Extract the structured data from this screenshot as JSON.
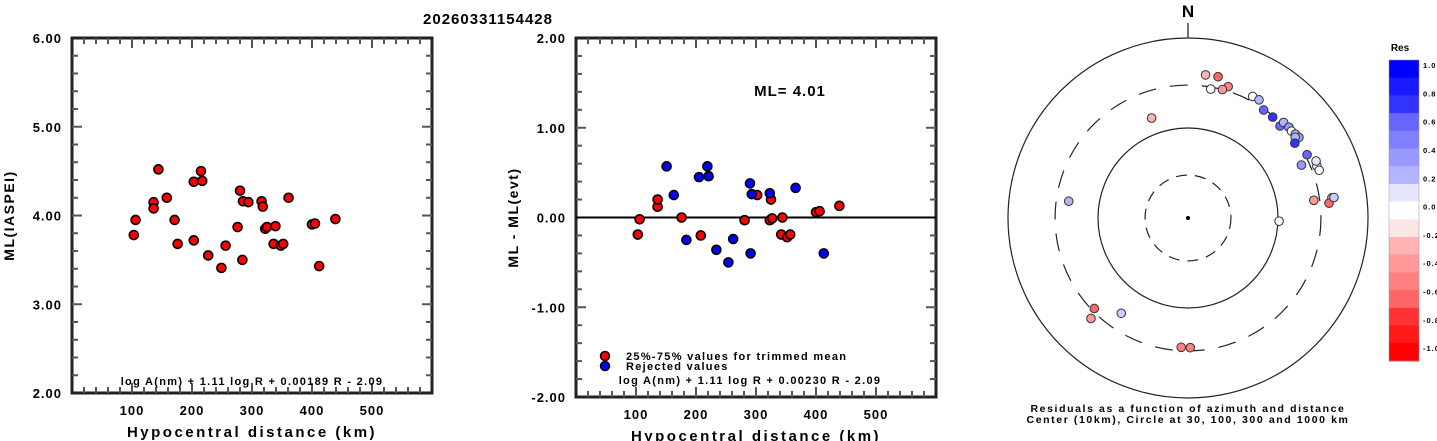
{
  "title": "20260331154428",
  "chart_data": [
    {
      "type": "scatter",
      "id": "ml-vs-distance",
      "xlabel": "Hypocentral distance (km)",
      "ylabel": "ML(IASPEI)",
      "xlim": [
        0,
        600
      ],
      "ylim": [
        2.0,
        6.0
      ],
      "xticks": [
        100,
        200,
        300,
        400,
        500
      ],
      "xtick_labels": [
        "100",
        "200",
        "300",
        "400",
        "500"
      ],
      "yticks": [
        2.0,
        3.0,
        4.0,
        5.0,
        6.0
      ],
      "ytick_labels": [
        "2.00",
        "3.00",
        "4.00",
        "5.00",
        "6.00"
      ],
      "annotation": "log A(nm) + 1.11 log R + 0.00189 R - 2.09",
      "marker_color": "#ff0000",
      "points": [
        [
          103,
          3.78
        ],
        [
          106,
          3.95
        ],
        [
          136,
          4.15
        ],
        [
          136,
          4.08
        ],
        [
          144,
          4.52
        ],
        [
          158,
          4.2
        ],
        [
          171,
          3.95
        ],
        [
          176,
          3.68
        ],
        [
          203,
          3.72
        ],
        [
          203,
          4.38
        ],
        [
          215,
          4.5
        ],
        [
          217,
          4.39
        ],
        [
          227,
          3.55
        ],
        [
          249,
          3.41
        ],
        [
          256,
          3.66
        ],
        [
          276,
          3.87
        ],
        [
          280,
          4.28
        ],
        [
          284,
          3.5
        ],
        [
          285,
          4.16
        ],
        [
          294,
          4.15
        ],
        [
          316,
          4.16
        ],
        [
          318,
          4.1
        ],
        [
          322,
          3.85
        ],
        [
          325,
          3.87
        ],
        [
          336,
          3.68
        ],
        [
          339,
          3.88
        ],
        [
          348,
          3.66
        ],
        [
          352,
          3.68
        ],
        [
          361,
          4.2
        ],
        [
          400,
          3.9
        ],
        [
          405,
          3.91
        ],
        [
          412,
          3.43
        ],
        [
          439,
          3.96
        ]
      ]
    },
    {
      "type": "scatter",
      "id": "residual-vs-distance",
      "xlabel": "Hypocentral distance (km)",
      "ylabel": "ML - ML(evt)",
      "xlim": [
        0,
        600
      ],
      "ylim": [
        -2.0,
        2.0
      ],
      "xticks": [
        100,
        200,
        300,
        400,
        500
      ],
      "xtick_labels": [
        "100",
        "200",
        "300",
        "400",
        "500"
      ],
      "yticks": [
        -2.0,
        -1.0,
        0.0,
        1.0,
        2.0
      ],
      "ytick_labels": [
        "-2.00",
        "-1.00",
        "0.00",
        "1.00",
        "2.00"
      ],
      "reference_line": 0.0,
      "ml_label": "ML= 4.01",
      "annotation": "log A(nm) + 1.11 log R + 0.00230 R - 2.09",
      "legend": [
        {
          "label": "25%-75% values for trimmed mean",
          "color": "#ff0000"
        },
        {
          "label": "Rejected values",
          "color": "#0000ff"
        }
      ],
      "legend_position": "bottom-left",
      "series": [
        {
          "name": "25%-75% values for trimmed mean",
          "color": "#ff0000",
          "points": [
            [
              103,
              -0.19
            ],
            [
              106,
              -0.02
            ],
            [
              136,
              0.12
            ],
            [
              136,
              0.2
            ],
            [
              176,
              0.0
            ],
            [
              208,
              -0.2
            ],
            [
              281,
              -0.03
            ],
            [
              302,
              0.25
            ],
            [
              323,
              -0.03
            ],
            [
              325,
              0.2
            ],
            [
              327,
              -0.01
            ],
            [
              342,
              -0.19
            ],
            [
              344,
              0.0
            ],
            [
              352,
              -0.22
            ],
            [
              357,
              -0.19
            ],
            [
              400,
              0.06
            ],
            [
              406,
              0.07
            ],
            [
              439,
              0.13
            ]
          ]
        },
        {
          "name": "Rejected values",
          "color": "#0000ff",
          "points": [
            [
              151,
              0.57
            ],
            [
              163,
              0.25
            ],
            [
              184,
              -0.25
            ],
            [
              205,
              0.45
            ],
            [
              219,
              0.57
            ],
            [
              221,
              0.46
            ],
            [
              234,
              -0.36
            ],
            [
              254,
              -0.5
            ],
            [
              262,
              -0.24
            ],
            [
              290,
              0.38
            ],
            [
              291,
              -0.4
            ],
            [
              293,
              0.26
            ],
            [
              323,
              0.27
            ],
            [
              366,
              0.33
            ],
            [
              413,
              -0.4
            ]
          ]
        }
      ]
    },
    {
      "type": "scatter",
      "id": "residual-azimuth-polar",
      "north_label": "N",
      "caption_line1": "Residuals as a function of azimuth and distance",
      "caption_line2": "Center (10km), Circle at 30, 100, 300 and 1000 km",
      "radial_scale": "log10",
      "circles_km": [
        30,
        100,
        300,
        1000
      ],
      "circle_styles": [
        "dashed",
        "solid",
        "dashed",
        "solid"
      ],
      "colorbar": {
        "title": "Res",
        "range": [
          -1.0,
          1.0
        ],
        "tick_labels": [
          "1.0",
          "0.8",
          "0.6",
          "0.4",
          "0.2",
          "0.0",
          "-0.2",
          "-0.4",
          "-0.6",
          "-0.8",
          "-1.0"
        ],
        "positive_color": "#0000ff",
        "negative_color": "#ff0000",
        "zero_color": "#ffffff"
      },
      "stations": [
        {
          "az": 12,
          "dist": 403,
          "res": -0.55
        },
        {
          "az": 7,
          "dist": 400,
          "res": -0.3
        },
        {
          "az": 17,
          "dist": 336,
          "res": -0.45
        },
        {
          "az": 15,
          "dist": 300,
          "res": -0.35
        },
        {
          "az": 10,
          "dist": 285,
          "res": 0.0
        },
        {
          "az": 28,
          "dist": 339,
          "res": 0.0
        },
        {
          "az": 31,
          "dist": 340,
          "res": 0.3
        },
        {
          "az": 35,
          "dist": 292,
          "res": 0.6
        },
        {
          "az": 40,
          "dist": 291,
          "res": 0.75
        },
        {
          "az": 45,
          "dist": 279,
          "res": 0.6
        },
        {
          "az": 45,
          "dist": 318,
          "res": 0.25
        },
        {
          "az": 48,
          "dist": 322,
          "res": 0.35
        },
        {
          "az": 50,
          "dist": 317,
          "res": 0.0
        },
        {
          "az": 52,
          "dist": 326,
          "res": 0.3
        },
        {
          "az": 54,
          "dist": 334,
          "res": 0.35
        },
        {
          "az": 53,
          "dist": 310,
          "res": 0.3
        },
        {
          "az": 55,
          "dist": 281,
          "res": 0.75
        },
        {
          "az": 62,
          "dist": 315,
          "res": 0.6
        },
        {
          "az": 65,
          "dist": 246,
          "res": 0.35
        },
        {
          "az": 68,
          "dist": 350,
          "res": 0.0
        },
        {
          "az": 66,
          "dist": 361,
          "res": 0.1
        },
        {
          "az": 70,
          "dist": 356,
          "res": 0.0
        },
        {
          "az": 82,
          "dist": 412,
          "res": -0.3
        },
        {
          "az": 84,
          "dist": 376,
          "res": -0.55
        },
        {
          "az": 82,
          "dist": 434,
          "res": 0.2
        },
        {
          "az": 82,
          "dist": 258,
          "res": -0.35
        },
        {
          "az": 92,
          "dist": 103,
          "res": 0.0
        },
        {
          "az": 340,
          "dist": 152,
          "res": -0.3
        },
        {
          "az": 278,
          "dist": 218,
          "res": 0.3
        },
        {
          "az": 224,
          "dist": 356,
          "res": -0.35
        },
        {
          "az": 226,
          "dist": 280,
          "res": -0.55
        },
        {
          "az": 215,
          "dist": 196,
          "res": 0.2
        },
        {
          "az": 183,
          "dist": 275,
          "res": -0.45
        },
        {
          "az": 179,
          "dist": 276,
          "res": -0.45
        }
      ]
    }
  ]
}
